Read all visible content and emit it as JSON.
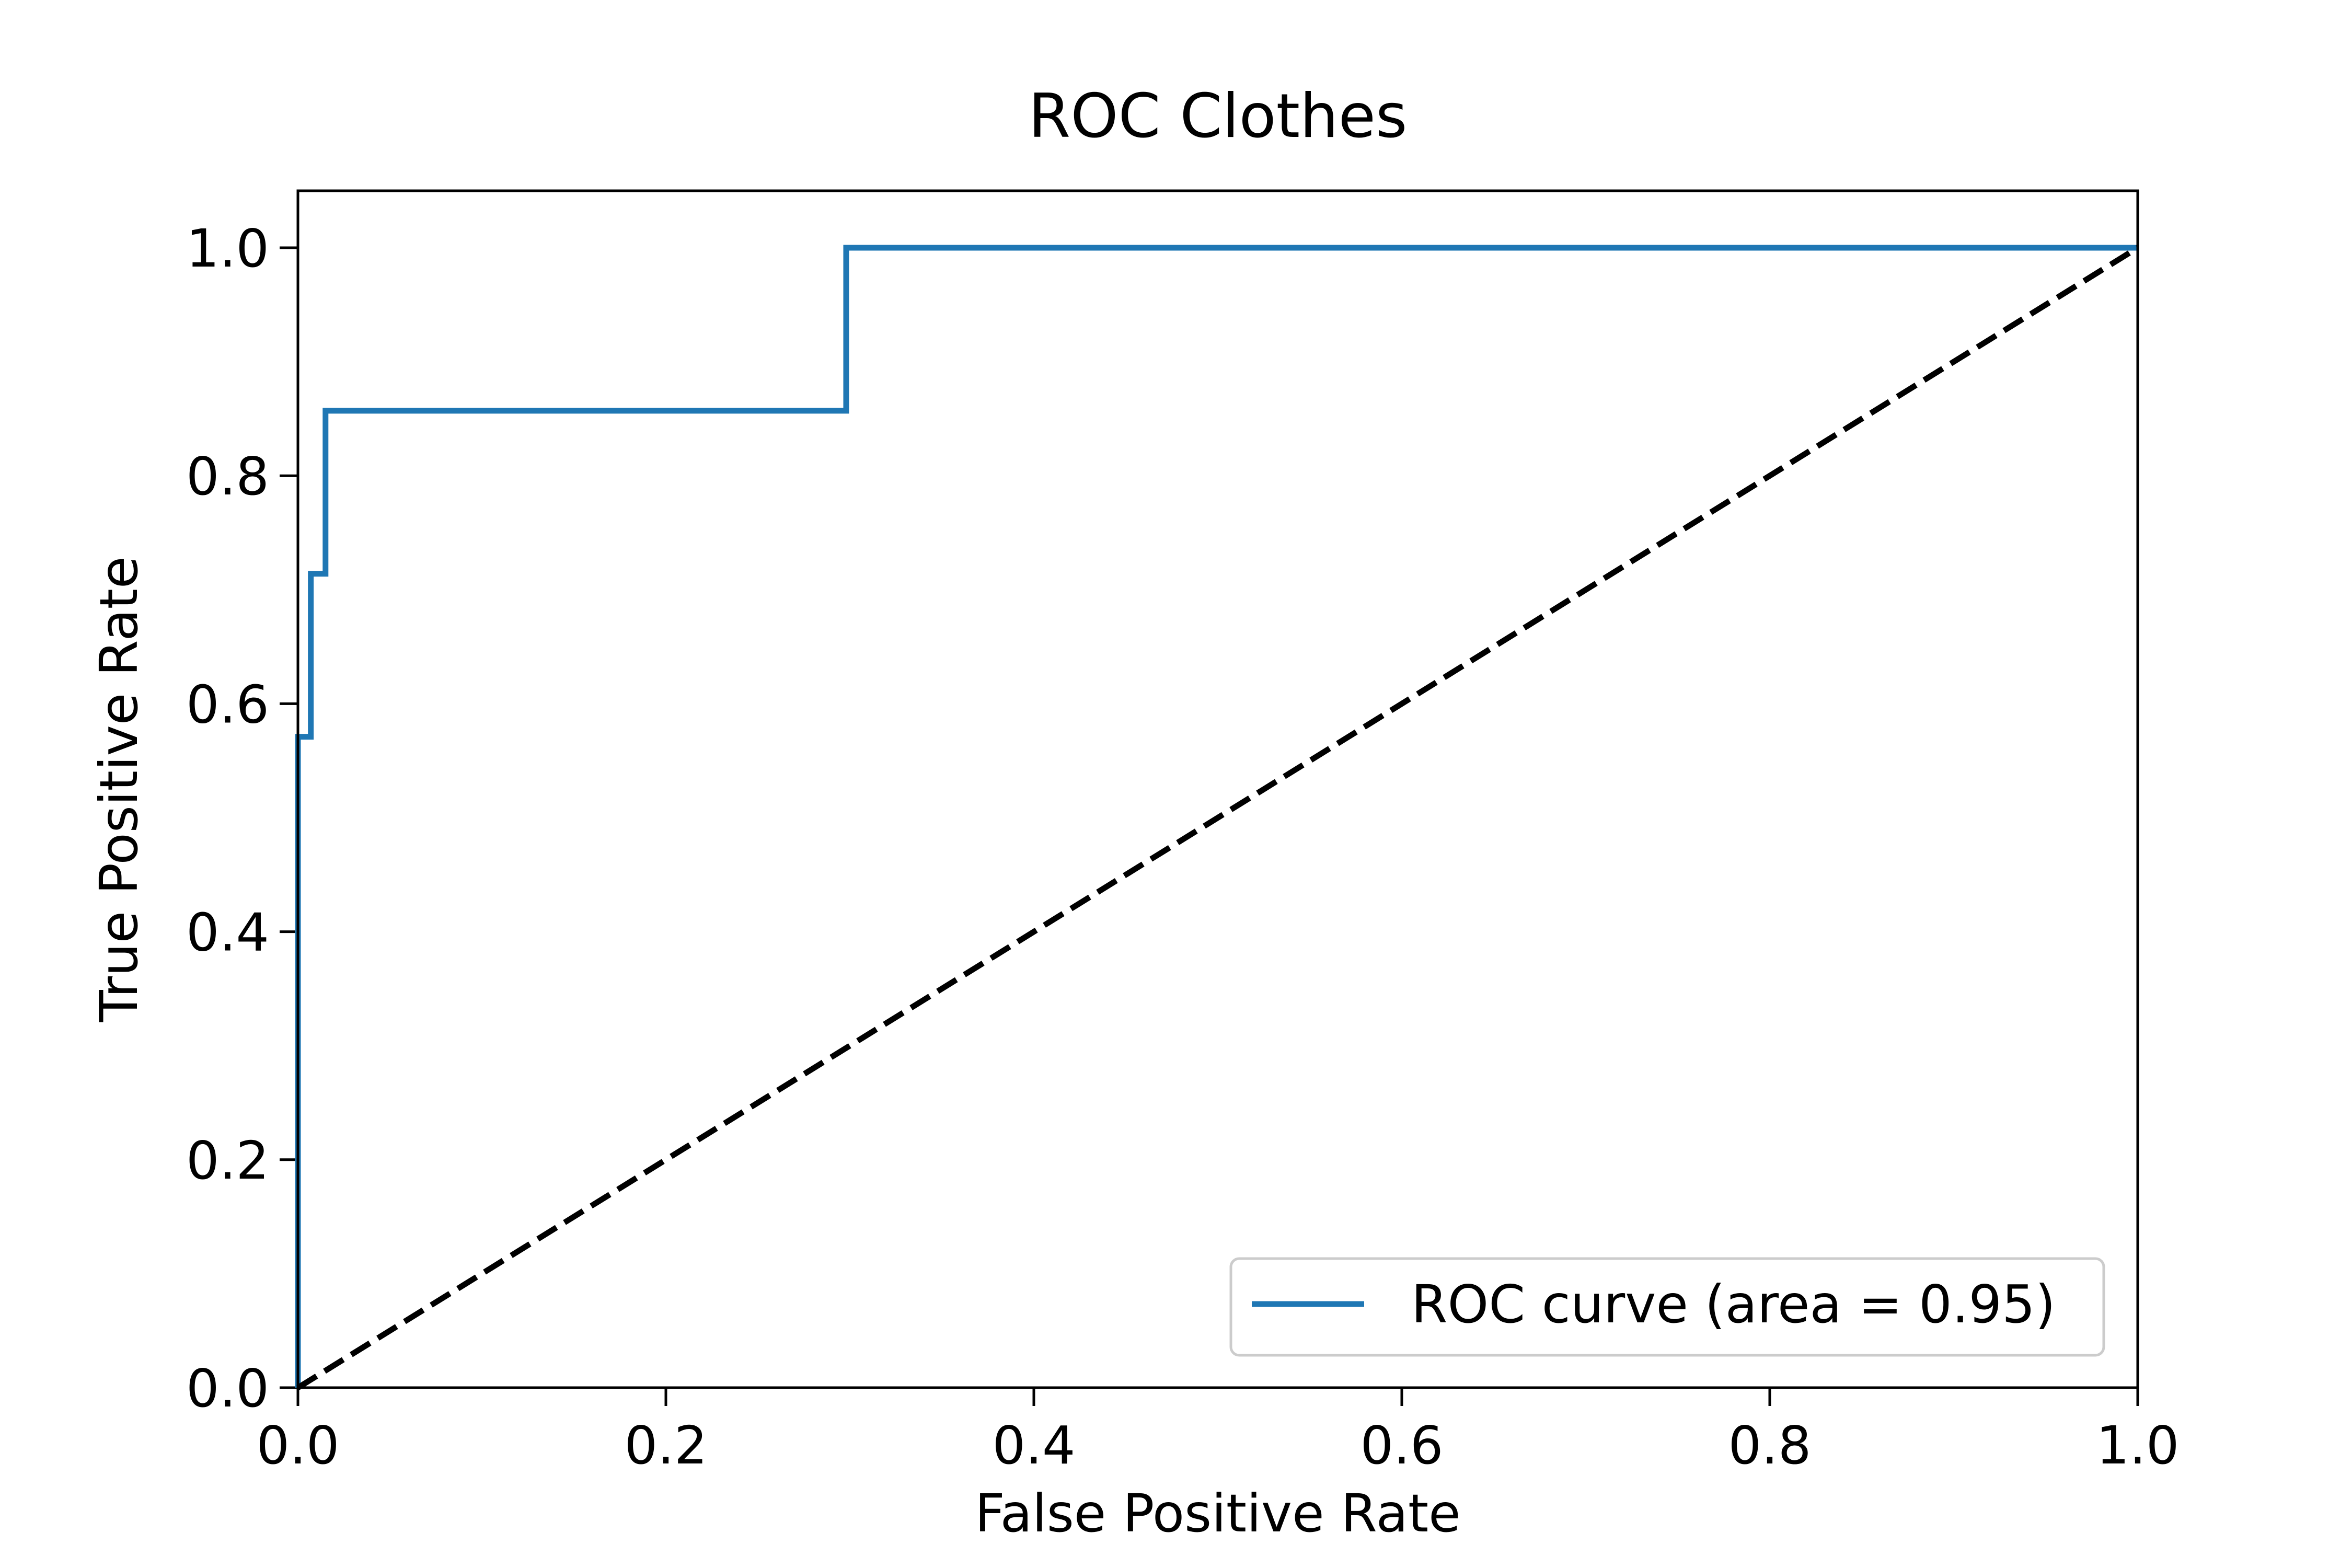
{
  "chart_data": {
    "type": "line",
    "title": "ROC Clothes",
    "xlabel": "False Positive Rate",
    "ylabel": "True Positive Rate",
    "xlim": [
      0.0,
      1.0
    ],
    "ylim": [
      0.0,
      1.05
    ],
    "xticks": [
      "0.0",
      "0.2",
      "0.4",
      "0.6",
      "0.8",
      "1.0"
    ],
    "yticks": [
      "0.0",
      "0.2",
      "0.4",
      "0.6",
      "0.8",
      "1.0"
    ],
    "grid": false,
    "legend_position": "lower-right",
    "series": [
      {
        "name": "ROC curve (area = 0.95)",
        "color": "#1f77b4",
        "style": "solid",
        "x": [
          0.0,
          0.0,
          0.007,
          0.007,
          0.015,
          0.015,
          0.298,
          0.298,
          1.0
        ],
        "y": [
          0.0,
          0.571,
          0.571,
          0.714,
          0.714,
          0.857,
          0.857,
          1.0,
          1.0
        ]
      },
      {
        "color": "#000000",
        "style": "dashed",
        "x": [
          0.0,
          1.0
        ],
        "y": [
          0.0,
          1.0
        ]
      }
    ]
  }
}
